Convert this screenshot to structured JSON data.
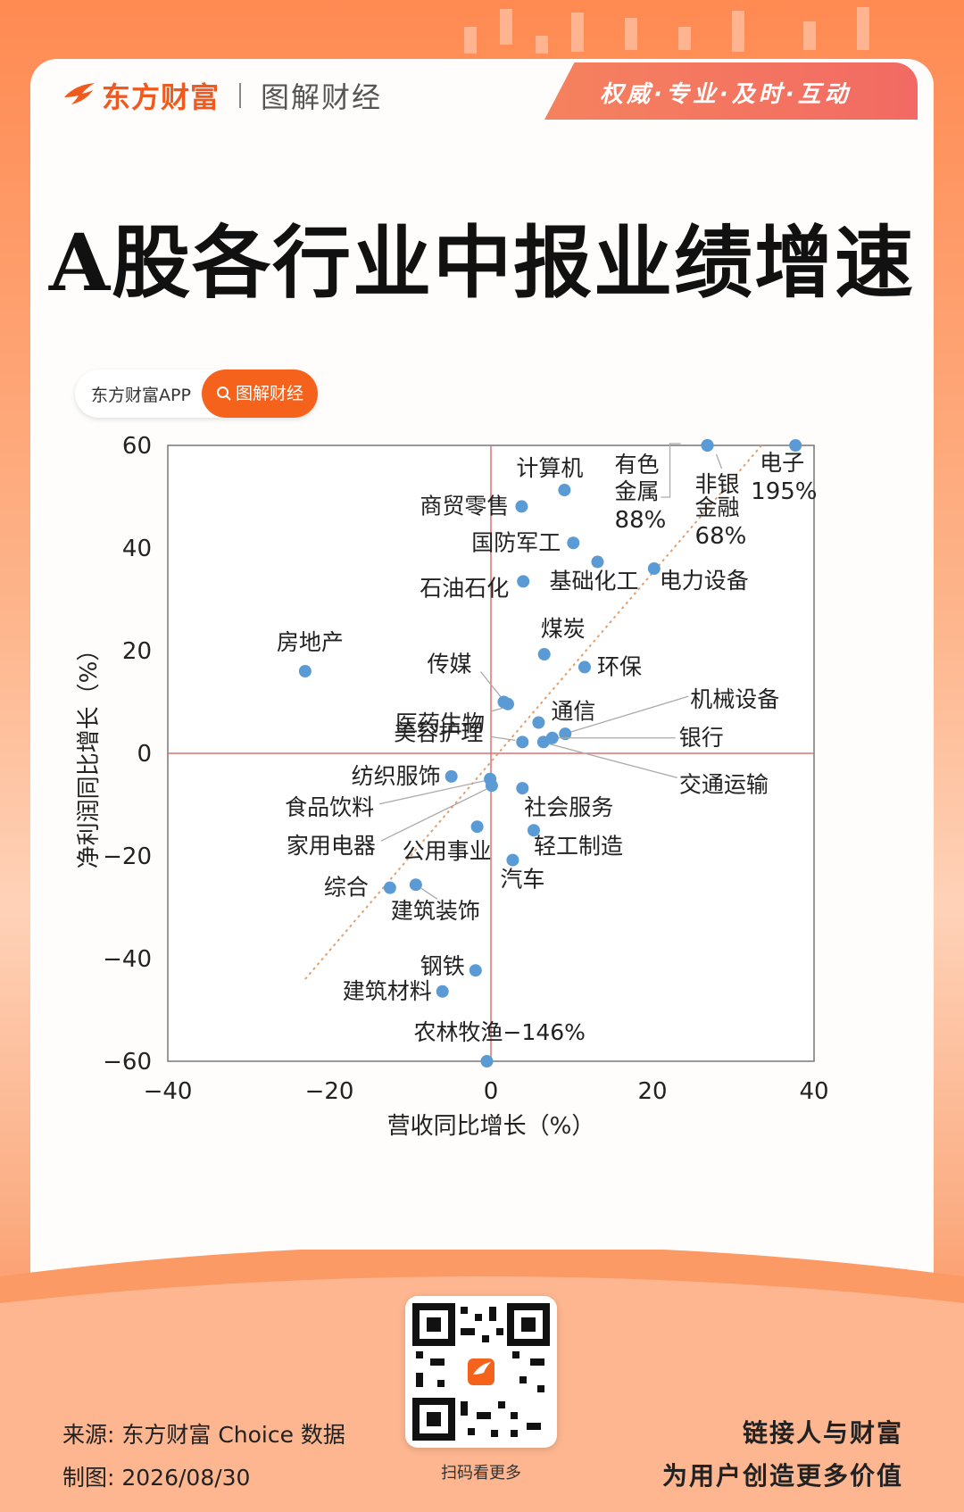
{
  "header": {
    "brand_name": "东方财富",
    "brand_sub": "图解财经",
    "slogan": "权威·专业·及时·互动"
  },
  "title": "A股各行业中报业绩增速",
  "search_pill": {
    "left": "东方财富APP",
    "right": "图解财经"
  },
  "footer": {
    "source": "来源: 东方财富 Choice 数据",
    "made_date": "制图: 2026/08/30",
    "qr_label": "扫码看更多",
    "slogan_line1": "链接人与财富",
    "slogan_line2": "为用户创造更多价值"
  },
  "colors": {
    "accent": "#f5621c",
    "point": "#5b9bd5",
    "trend": "#e0a070",
    "axis_zero": "#e07070"
  },
  "chart_data": {
    "type": "scatter",
    "xlabel": "营收同比增长（%）",
    "ylabel": "净利润同比增长（%）",
    "xlim": [
      -40,
      40
    ],
    "ylim": [
      -60,
      60
    ],
    "xticks": [
      -40,
      -20,
      0,
      20,
      40
    ],
    "yticks": [
      60,
      40,
      20,
      0,
      -20,
      -40,
      -60
    ],
    "trendline": [
      [
        -23,
        -44
      ],
      [
        33.5,
        60
      ]
    ],
    "points": [
      {
        "label": "电子",
        "note": "195%",
        "x": 37.7,
        "y": 60
      },
      {
        "label": "非银金融",
        "note": "68%",
        "x": 26.8,
        "y": 60
      },
      {
        "label": "有色金属",
        "note": "88%",
        "x": 26.8,
        "y": 60
      },
      {
        "label": "计算机",
        "x": 9.1,
        "y": 51.3
      },
      {
        "label": "商贸零售",
        "x": 3.8,
        "y": 48.1
      },
      {
        "label": "国防军工",
        "x": 10.2,
        "y": 41.0
      },
      {
        "label": "基础化工",
        "x": 13.2,
        "y": 37.3
      },
      {
        "label": "电力设备",
        "x": 20.2,
        "y": 36.0
      },
      {
        "label": "石油石化",
        "x": 4.0,
        "y": 33.5
      },
      {
        "label": "煤炭",
        "x": 6.6,
        "y": 19.3
      },
      {
        "label": "环保",
        "x": 11.6,
        "y": 16.8
      },
      {
        "label": "房地产",
        "x": -23.0,
        "y": 16.0
      },
      {
        "label": "传媒",
        "x": 1.6,
        "y": 10.0
      },
      {
        "label": "医药生物",
        "x": 2.1,
        "y": 9.6
      },
      {
        "label": "通信",
        "x": 5.9,
        "y": 6.0
      },
      {
        "label": "机械设备",
        "x": 9.2,
        "y": 3.8
      },
      {
        "label": "银行",
        "x": 7.6,
        "y": 3.0
      },
      {
        "label": "美容护理",
        "x": 3.9,
        "y": 2.2
      },
      {
        "label": "交通运输",
        "x": 6.5,
        "y": 2.2
      },
      {
        "label": "纺织服饰",
        "x": -4.9,
        "y": -4.5
      },
      {
        "label": "食品饮料",
        "x": -0.1,
        "y": -5.0
      },
      {
        "label": "家用电器",
        "x": 0.1,
        "y": -6.3
      },
      {
        "label": "社会服务",
        "x": 3.9,
        "y": -6.8
      },
      {
        "label": "公用事业",
        "x": -1.7,
        "y": -14.3
      },
      {
        "label": "轻工制造",
        "x": 5.3,
        "y": -15.0
      },
      {
        "label": "汽车",
        "x": 2.7,
        "y": -20.8
      },
      {
        "label": "综合",
        "x": -12.5,
        "y": -26.2
      },
      {
        "label": "建筑装饰",
        "x": -9.3,
        "y": -25.6
      },
      {
        "label": "钢铁",
        "x": -1.9,
        "y": -42.3
      },
      {
        "label": "建筑材料",
        "x": -6.0,
        "y": -46.4
      },
      {
        "label": "农林牧渔",
        "note": "−146%",
        "x": -0.5,
        "y": -60
      }
    ]
  }
}
